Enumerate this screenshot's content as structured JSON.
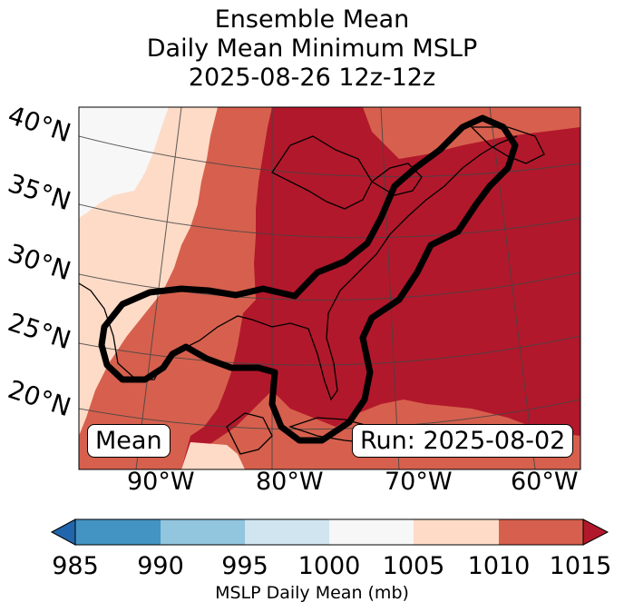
{
  "title": {
    "line1": "Ensemble Mean",
    "line2": "Daily Mean Minimum MSLP",
    "line3": "2025-08-26 12z-12z"
  },
  "lat_labels": [
    "40°N",
    "35°N",
    "30°N",
    "25°N",
    "20°N"
  ],
  "lon_labels": [
    "90°W",
    "80°W",
    "70°W",
    "60°W"
  ],
  "mean_box": "Mean",
  "run_box": "Run: 2025-08-02",
  "colorbar": {
    "ticks": [
      "985",
      "990",
      "995",
      "1000",
      "1005",
      "1010",
      "1015"
    ],
    "label": "MSLP Daily Mean (mb)",
    "colors": [
      "#4393c3",
      "#92c5de",
      "#d1e5f0",
      "#f7f7f7",
      "#fddbc7",
      "#d6604d",
      "#b2182b",
      "#2166ac",
      "#b2182b"
    ]
  },
  "fill_colors": {
    "lowest": "#f7f7f7",
    "low": "#fddbc7",
    "mid": "#d6604d",
    "high": "#b2182b"
  }
}
